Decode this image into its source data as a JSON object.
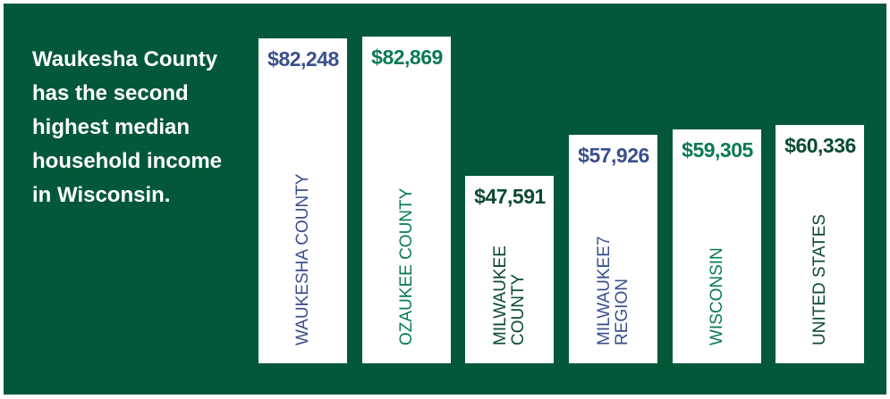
{
  "chart_data": {
    "type": "bar",
    "title": "Waukesha County has the second highest median household income in Wisconsin.",
    "categories": [
      "WAUKESHA COUNTY",
      "OZAUKEE COUNTY",
      "MILWAUKEE COUNTY",
      "MILWAUKEE7 REGION",
      "WISCONSIN",
      "UNITED STATES"
    ],
    "values": [
      82248,
      82869,
      47591,
      57926,
      59305,
      60336
    ],
    "value_labels": [
      "$82,248",
      "$82,869",
      "$47,591",
      "$57,926",
      "$59,305",
      "$60,336"
    ],
    "colors": [
      "#3a4f8c",
      "#0a7a55",
      "#0b4a30",
      "#3a4f8c",
      "#0a7a55",
      "#0b4a30"
    ],
    "color": "#ffffff",
    "ylim": [
      0,
      83000
    ]
  }
}
